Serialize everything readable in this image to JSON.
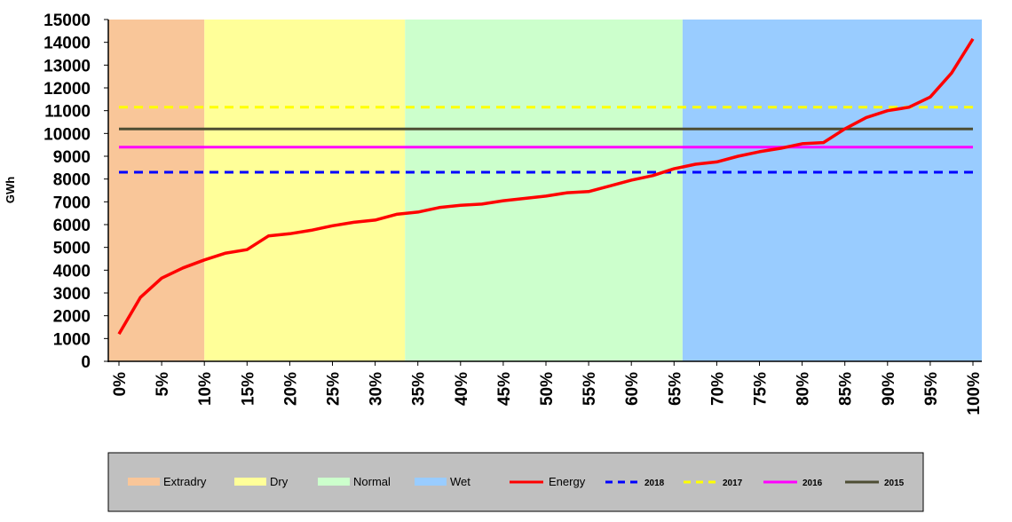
{
  "chart_data": {
    "type": "line",
    "ylabel": "GWh",
    "xlabel": "",
    "ylim": [
      0,
      15000
    ],
    "xlim": [
      0,
      100
    ],
    "yticks": [
      "0",
      "1000",
      "2000",
      "3000",
      "4000",
      "5000",
      "6000",
      "7000",
      "8000",
      "9000",
      "10000",
      "11000",
      "12000",
      "13000",
      "14000",
      "15000"
    ],
    "xticks": [
      "0%",
      "5%",
      "10%",
      "15%",
      "20%",
      "25%",
      "30%",
      "35%",
      "40%",
      "45%",
      "50%",
      "55%",
      "60%",
      "65%",
      "70%",
      "75%",
      "80%",
      "85%",
      "90%",
      "95%",
      "100%"
    ],
    "bands": [
      {
        "name": "Extradry",
        "from": 0,
        "to": 10,
        "color": "#f9c699"
      },
      {
        "name": "Dry",
        "from": 10,
        "to": 33.5,
        "color": "#ffff99"
      },
      {
        "name": "Normal",
        "from": 33.5,
        "to": 66,
        "color": "#ccffcc"
      },
      {
        "name": "Wet",
        "from": 66,
        "to": 100,
        "color": "#99ccff"
      }
    ],
    "series": [
      {
        "name": "Energy",
        "color": "#ff0000",
        "style": "solid",
        "x": [
          0,
          2.5,
          5,
          7.5,
          10,
          12.5,
          15,
          17.5,
          20,
          22.5,
          25,
          27.5,
          30,
          32.5,
          35,
          37.5,
          40,
          42.5,
          45,
          47.5,
          50,
          52.5,
          55,
          57.5,
          60,
          62.5,
          65,
          67.5,
          70,
          72.5,
          75,
          77.5,
          80,
          82.5,
          85,
          87.5,
          90,
          92.5,
          95,
          97.5,
          100
        ],
        "y": [
          1200,
          2800,
          3650,
          4100,
          4450,
          4750,
          4900,
          5500,
          5600,
          5750,
          5950,
          6100,
          6200,
          6450,
          6550,
          6750,
          6850,
          6900,
          7050,
          7150,
          7250,
          7400,
          7450,
          7700,
          7950,
          8150,
          8450,
          8650,
          8750,
          9000,
          9200,
          9350,
          9550,
          9600,
          10200,
          10700,
          11000,
          11150,
          11600,
          12650,
          14150
        ]
      },
      {
        "name": "2018",
        "color": "#0000ff",
        "style": "dashed",
        "x": [
          0,
          100
        ],
        "y": [
          8300,
          8300
        ]
      },
      {
        "name": "2017",
        "color": "#ffff00",
        "style": "dashed",
        "x": [
          0,
          100
        ],
        "y": [
          11150,
          11150
        ]
      },
      {
        "name": "2016",
        "color": "#ff00ff",
        "style": "solid",
        "x": [
          0,
          100
        ],
        "y": [
          9400,
          9400
        ]
      },
      {
        "name": "2015",
        "color": "#4d4d33",
        "style": "solid",
        "x": [
          0,
          100
        ],
        "y": [
          10200,
          10200
        ]
      }
    ]
  }
}
